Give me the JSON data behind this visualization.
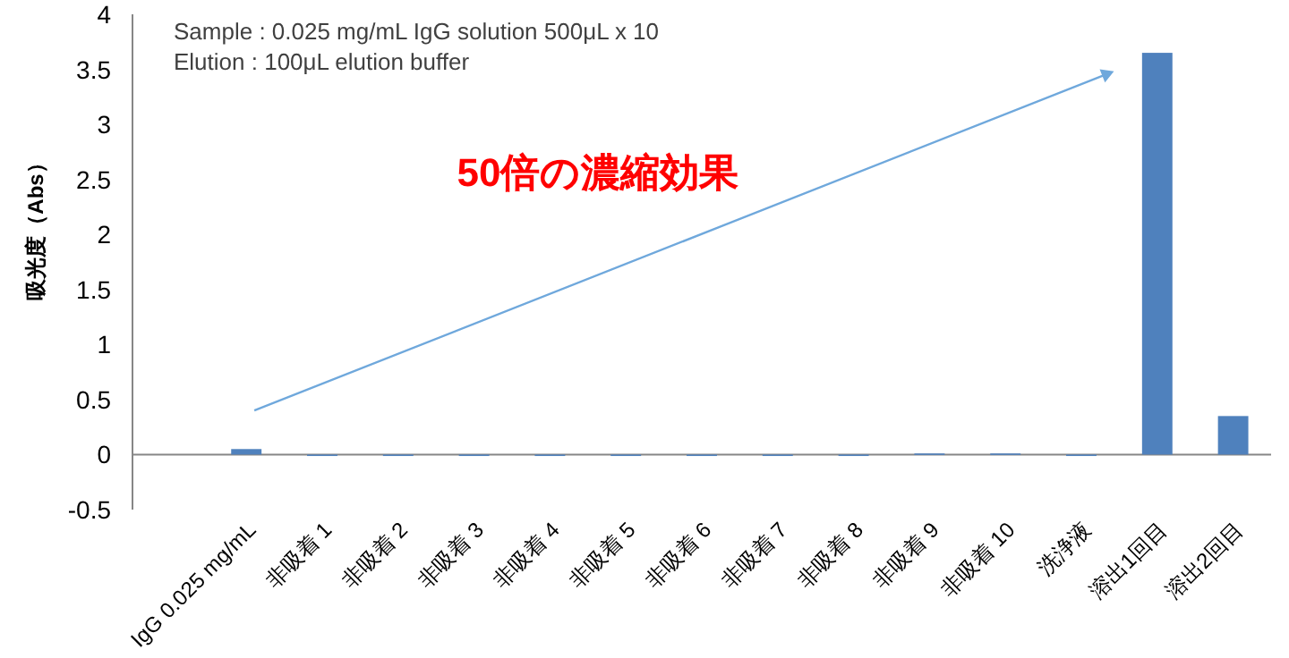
{
  "chart_data": {
    "type": "bar",
    "ylabel": "吸光度（Abs）",
    "categories": [
      null,
      "IgG 0.025 mg/mL",
      "非吸着 1",
      "非吸着 2",
      "非吸着 3",
      "非吸着 4",
      "非吸着 5",
      "非吸着 6",
      "非吸着 7",
      "非吸着 8",
      "非吸着 9",
      "非吸着 10",
      "洗浄液",
      "溶出1回目",
      "溶出2回目"
    ],
    "values": [
      null,
      0.05,
      0,
      0,
      0,
      0,
      0,
      0,
      0,
      0,
      0.01,
      0.01,
      0,
      3.65,
      0.35
    ],
    "color": "#4f81bd",
    "ylim": [
      -0.5,
      4
    ],
    "yticks": [
      -0.5,
      0,
      0.5,
      1,
      1.5,
      2,
      2.5,
      3,
      3.5,
      4
    ],
    "annotations": [
      "Sample : 0.025 mg/mL IgG solution 500μL x 10",
      "Elution : 100μL elution buffer",
      "50倍の濃縮効果"
    ]
  }
}
